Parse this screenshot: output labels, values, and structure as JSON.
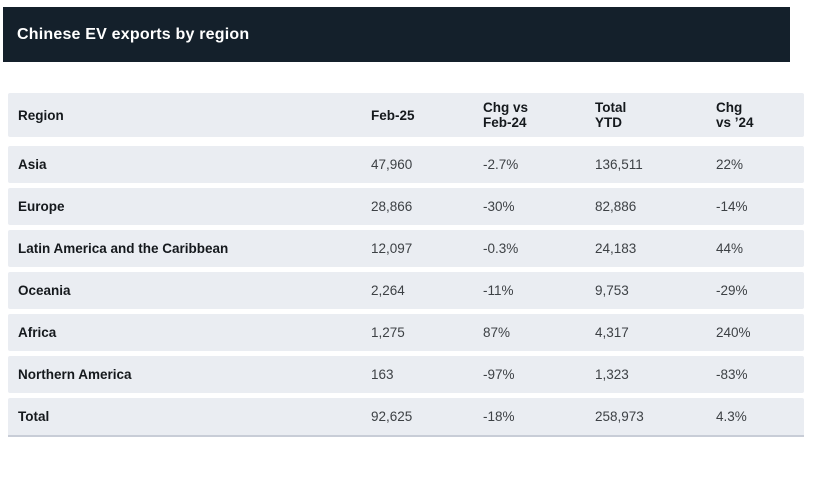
{
  "header": {
    "title": "Chinese EV exports by region"
  },
  "colors": {
    "title_bar_bg": "#14202b",
    "title_text": "#ffffff",
    "row_bg": "#eaedf2",
    "heading_text": "#15191d",
    "value_text": "#3d4145",
    "total_row_border": "#c8cdd7",
    "page_bg": "#ffffff"
  },
  "table": {
    "columns": [
      {
        "label": "Region"
      },
      {
        "label": "Feb-25"
      },
      {
        "label": "Chg vs\nFeb-24"
      },
      {
        "label": "Total\nYTD"
      },
      {
        "label": "Chg\nvs ’24"
      }
    ],
    "rows": [
      {
        "region": "Asia",
        "feb25": "47,960",
        "chg_vs_feb24": "-2.7%",
        "total_ytd": "136,511",
        "chg_vs_24": "22%"
      },
      {
        "region": "Europe",
        "feb25": "28,866",
        "chg_vs_feb24": "-30%",
        "total_ytd": "82,886",
        "chg_vs_24": "-14%"
      },
      {
        "region": "Latin America and the Caribbean",
        "feb25": "12,097",
        "chg_vs_feb24": "-0.3%",
        "total_ytd": "24,183",
        "chg_vs_24": "44%"
      },
      {
        "region": "Oceania",
        "feb25": "2,264",
        "chg_vs_feb24": "-11%",
        "total_ytd": "9,753",
        "chg_vs_24": "-29%"
      },
      {
        "region": "Africa",
        "feb25": "1,275",
        "chg_vs_feb24": "87%",
        "total_ytd": "4,317",
        "chg_vs_24": "240%"
      },
      {
        "region": "Northern America",
        "feb25": "163",
        "chg_vs_feb24": "-97%",
        "total_ytd": "1,323",
        "chg_vs_24": "-83%"
      }
    ],
    "total_row": {
      "region": "Total",
      "feb25": "92,625",
      "chg_vs_feb24": "-18%",
      "total_ytd": "258,973",
      "chg_vs_24": "4.3%"
    }
  },
  "chart_data": {
    "type": "table",
    "title": "Chinese EV exports by region",
    "columns": [
      "Region",
      "Feb-25",
      "Chg vs Feb-24",
      "Total YTD",
      "Chg vs ’24"
    ],
    "rows": [
      [
        "Asia",
        47960,
        "-2.7%",
        136511,
        "22%"
      ],
      [
        "Europe",
        28866,
        "-30%",
        82886,
        "-14%"
      ],
      [
        "Latin America and the Caribbean",
        12097,
        "-0.3%",
        24183,
        "44%"
      ],
      [
        "Oceania",
        2264,
        "-11%",
        9753,
        "-29%"
      ],
      [
        "Africa",
        1275,
        "87%",
        4317,
        "240%"
      ],
      [
        "Northern America",
        163,
        "-97%",
        1323,
        "-83%"
      ],
      [
        "Total",
        92625,
        "-18%",
        258973,
        "4.3%"
      ]
    ]
  }
}
